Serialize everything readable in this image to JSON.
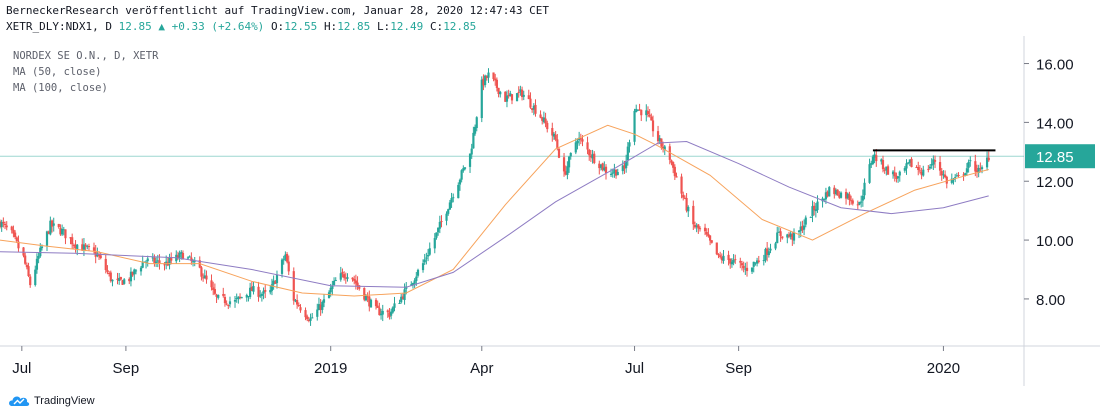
{
  "header": {
    "line1": "BerneckerResearch veröffentlicht auf TradingView.com, Januar 28, 2020 12:47:43 CET",
    "symbol": "XETR_DLY:NDX1, D",
    "last": "12.85",
    "change": "+0.33 (+2.64%)",
    "o_label": "O:",
    "o": "12.55",
    "h_label": "H:",
    "h": "12.85",
    "l_label": "L:",
    "l": "12.49",
    "c_label": "C:",
    "c": "12.85"
  },
  "legend": [
    "NORDEX SE O.N., D, XETR",
    "MA (50, close)",
    "MA (100, close)"
  ],
  "footer": {
    "brand": "TradingView"
  },
  "colors": {
    "up": "#26a69a",
    "down": "#ef5350",
    "ma50": "#f7a35c",
    "ma100": "#8e7cc3",
    "last_price": "#26a69a",
    "resistance": "#000000"
  },
  "chart_data": {
    "type": "candlestick",
    "ylim": [
      6.4,
      16.8
    ],
    "y_ticks": [
      8.0,
      10.0,
      12.0,
      14.0,
      16.0
    ],
    "y_tick_labels": [
      "8.00",
      "10.00",
      "12.00",
      "14.00",
      "16.00"
    ],
    "x_range": [
      "2018-06-18",
      "2020-02-18"
    ],
    "x_ticks": [
      {
        "date": "2018-07-01",
        "label": "Jul"
      },
      {
        "date": "2018-09-01",
        "label": "Sep"
      },
      {
        "date": "2019-01-01",
        "label": "2019"
      },
      {
        "date": "2019-04-01",
        "label": "Apr"
      },
      {
        "date": "2019-07-01",
        "label": "Jul"
      },
      {
        "date": "2019-09-01",
        "label": "Sep"
      },
      {
        "date": "2020-01-01",
        "label": "2020"
      }
    ],
    "last_price": {
      "value": 12.85,
      "label": "12.85"
    },
    "resistance": {
      "value": 13.05,
      "from": "2019-11-20",
      "to": "2020-02-01"
    },
    "price_path": [
      [
        "2018-06-18",
        10.6
      ],
      [
        "2018-06-25",
        10.2
      ],
      [
        "2018-07-02",
        9.4
      ],
      [
        "2018-07-06",
        8.5
      ],
      [
        "2018-07-12",
        9.6
      ],
      [
        "2018-07-18",
        10.5
      ],
      [
        "2018-07-25",
        10.3
      ],
      [
        "2018-08-01",
        9.9
      ],
      [
        "2018-08-15",
        9.5
      ],
      [
        "2018-08-25",
        8.5
      ],
      [
        "2018-09-03",
        8.7
      ],
      [
        "2018-09-12",
        9.3
      ],
      [
        "2018-09-25",
        9.2
      ],
      [
        "2018-10-05",
        9.5
      ],
      [
        "2018-10-15",
        9.0
      ],
      [
        "2018-10-25",
        8.0
      ],
      [
        "2018-11-05",
        7.9
      ],
      [
        "2018-11-15",
        8.3
      ],
      [
        "2018-11-25",
        8.1
      ],
      [
        "2018-12-05",
        9.5
      ],
      [
        "2018-12-10",
        8.0
      ],
      [
        "2018-12-20",
        7.3
      ],
      [
        "2018-12-28",
        7.9
      ],
      [
        "2019-01-05",
        8.7
      ],
      [
        "2019-01-12",
        8.9
      ],
      [
        "2019-01-20",
        8.2
      ],
      [
        "2019-01-28",
        7.6
      ],
      [
        "2019-02-05",
        7.5
      ],
      [
        "2019-02-15",
        8.3
      ],
      [
        "2019-02-25",
        9.2
      ],
      [
        "2019-03-05",
        10.2
      ],
      [
        "2019-03-15",
        11.6
      ],
      [
        "2019-03-25",
        12.9
      ],
      [
        "2019-04-01",
        15.3
      ],
      [
        "2019-04-05",
        15.6
      ],
      [
        "2019-04-15",
        14.8
      ],
      [
        "2019-04-25",
        15.0
      ],
      [
        "2019-05-05",
        14.3
      ],
      [
        "2019-05-15",
        13.4
      ],
      [
        "2019-05-20",
        12.2
      ],
      [
        "2019-05-28",
        13.5
      ],
      [
        "2019-06-05",
        12.9
      ],
      [
        "2019-06-15",
        12.3
      ],
      [
        "2019-06-25",
        12.4
      ],
      [
        "2019-07-01",
        14.5
      ],
      [
        "2019-07-08",
        14.3
      ],
      [
        "2019-07-15",
        13.4
      ],
      [
        "2019-07-22",
        12.8
      ],
      [
        "2019-07-29",
        11.6
      ],
      [
        "2019-08-05",
        10.5
      ],
      [
        "2019-08-12",
        10.2
      ],
      [
        "2019-08-20",
        9.4
      ],
      [
        "2019-08-28",
        9.3
      ],
      [
        "2019-09-05",
        9.0
      ],
      [
        "2019-09-15",
        9.4
      ],
      [
        "2019-09-25",
        10.2
      ],
      [
        "2019-10-05",
        10.1
      ],
      [
        "2019-10-15",
        11.0
      ],
      [
        "2019-10-25",
        11.7
      ],
      [
        "2019-11-05",
        11.5
      ],
      [
        "2019-11-12",
        11.2
      ],
      [
        "2019-11-20",
        12.9
      ],
      [
        "2019-11-28",
        12.4
      ],
      [
        "2019-12-05",
        12.1
      ],
      [
        "2019-12-12",
        12.6
      ],
      [
        "2019-12-20",
        12.3
      ],
      [
        "2019-12-27",
        12.7
      ],
      [
        "2020-01-03",
        12.0
      ],
      [
        "2020-01-10",
        12.1
      ],
      [
        "2020-01-17",
        12.6
      ],
      [
        "2020-01-23",
        12.3
      ],
      [
        "2020-01-28",
        12.85
      ]
    ],
    "series": [
      {
        "name": "MA (50, close)",
        "points": [
          [
            "2018-06-18",
            10.0
          ],
          [
            "2018-07-15",
            9.8
          ],
          [
            "2018-08-15",
            9.6
          ],
          [
            "2018-09-15",
            9.2
          ],
          [
            "2018-10-15",
            9.2
          ],
          [
            "2018-11-15",
            8.6
          ],
          [
            "2018-12-15",
            8.2
          ],
          [
            "2019-01-15",
            8.1
          ],
          [
            "2019-02-15",
            8.2
          ],
          [
            "2019-03-15",
            9.0
          ],
          [
            "2019-04-15",
            11.2
          ],
          [
            "2019-05-15",
            13.1
          ],
          [
            "2019-06-15",
            13.9
          ],
          [
            "2019-07-01",
            13.6
          ],
          [
            "2019-07-15",
            13.2
          ],
          [
            "2019-08-15",
            12.2
          ],
          [
            "2019-09-15",
            10.7
          ],
          [
            "2019-10-15",
            10.0
          ],
          [
            "2019-11-15",
            10.9
          ],
          [
            "2019-12-15",
            11.7
          ],
          [
            "2020-01-15",
            12.2
          ],
          [
            "2020-01-28",
            12.4
          ]
        ]
      },
      {
        "name": "MA (100, close)",
        "points": [
          [
            "2018-06-18",
            9.6
          ],
          [
            "2018-08-01",
            9.55
          ],
          [
            "2018-10-01",
            9.4
          ],
          [
            "2018-11-15",
            9.0
          ],
          [
            "2019-01-01",
            8.45
          ],
          [
            "2019-02-15",
            8.4
          ],
          [
            "2019-03-15",
            8.9
          ],
          [
            "2019-04-15",
            10.1
          ],
          [
            "2019-05-15",
            11.3
          ],
          [
            "2019-06-15",
            12.3
          ],
          [
            "2019-07-15",
            13.3
          ],
          [
            "2019-08-01",
            13.35
          ],
          [
            "2019-09-01",
            12.6
          ],
          [
            "2019-10-01",
            11.8
          ],
          [
            "2019-11-01",
            11.1
          ],
          [
            "2019-12-01",
            10.9
          ],
          [
            "2020-01-01",
            11.1
          ],
          [
            "2020-01-28",
            11.5
          ]
        ]
      }
    ]
  }
}
